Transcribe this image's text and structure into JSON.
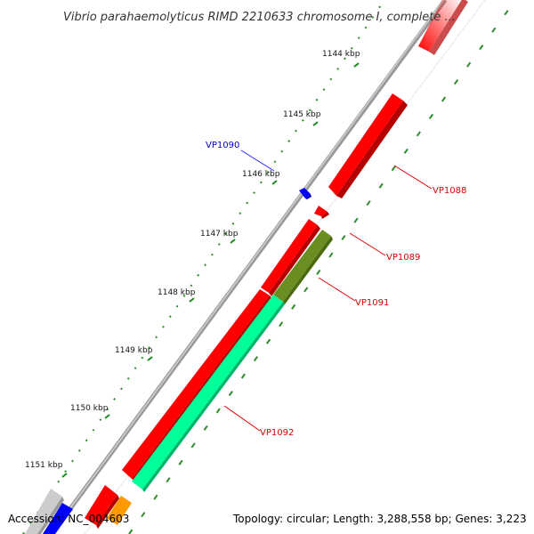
{
  "title": "Vibrio parahaemolyticus RIMD 2210633 chromosome I, complete ...",
  "footer": {
    "accession": "Accession: NC_004603",
    "topology": "Topology: circular; Length: 3,288,558 bp; Genes: 3,223"
  },
  "scale_ticks": [
    {
      "label": "1144 kbp"
    },
    {
      "label": "1145 kbp"
    },
    {
      "label": "1146 kbp"
    },
    {
      "label": "1147 kbp"
    },
    {
      "label": "1148 kbp"
    },
    {
      "label": "1149 kbp"
    },
    {
      "label": "1150 kbp"
    },
    {
      "label": "1151 kbp"
    }
  ],
  "genes": [
    {
      "id": "VP1088",
      "label": "VP1088",
      "color": "#ff0000",
      "label_color": "#dd0000"
    },
    {
      "id": "VP1089",
      "label": "VP1089",
      "color": "#ff0000",
      "label_color": "#dd0000"
    },
    {
      "id": "VP1090",
      "label": "VP1090",
      "color": "#0000ff",
      "label_color": "#0000cc"
    },
    {
      "id": "VP1091",
      "label": "VP1091",
      "color": "#6b8e23",
      "label_color": "#dd0000"
    },
    {
      "id": "VP1092",
      "label": "VP1092",
      "color": "#00ff99",
      "label_color": "#dd0000"
    }
  ],
  "colors": {
    "backbone": "#888888",
    "tick_green": "#1a8a1a",
    "red": "#ff0000",
    "orange": "#ff9900",
    "grey_gene": "#cccccc"
  }
}
